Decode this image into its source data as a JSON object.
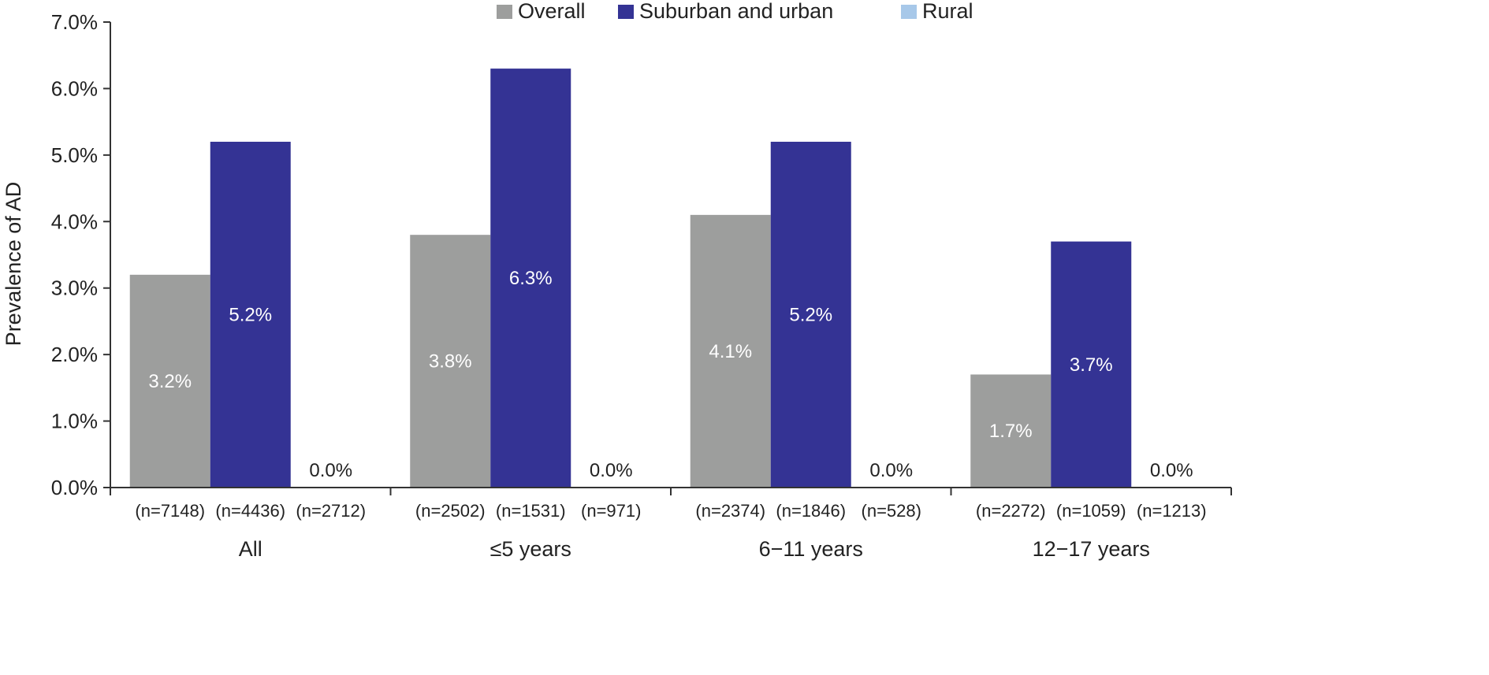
{
  "chart_data": {
    "type": "bar",
    "title": "",
    "ylabel": "Prevalence of AD",
    "ylim": [
      0,
      7
    ],
    "yticks": [
      "0.0%",
      "1.0%",
      "2.0%",
      "3.0%",
      "4.0%",
      "5.0%",
      "6.0%",
      "7.0%"
    ],
    "grid": false,
    "legend_position": "top-center",
    "categories": [
      "All",
      "≤5 years",
      "6−11 years",
      "12−17 years"
    ],
    "series": [
      {
        "name": "Overall",
        "color": "#9d9e9d",
        "label_color": "#ffffff",
        "values": [
          3.2,
          3.8,
          4.1,
          1.7
        ],
        "labels": [
          "3.2%",
          "3.8%",
          "4.1%",
          "1.7%"
        ],
        "n": [
          "(n=7148)",
          "(n=2502)",
          "(n=2374)",
          "(n=2272)"
        ]
      },
      {
        "name": "Suburban and urban",
        "color": "#343394",
        "label_color": "#ffffff",
        "values": [
          5.2,
          6.3,
          5.2,
          3.7
        ],
        "labels": [
          "5.2%",
          "6.3%",
          "5.2%",
          "3.7%"
        ],
        "n": [
          "(n=4436)",
          "(n=1531)",
          "(n=1846)",
          "(n=1059)"
        ]
      },
      {
        "name": "Rural",
        "color": "#a7c8e9",
        "label_color": "#222222",
        "values": [
          0.0,
          0.0,
          0.0,
          0.0
        ],
        "labels": [
          "0.0%",
          "0.0%",
          "0.0%",
          "0.0%"
        ],
        "n": [
          "(n=2712)",
          "(n=971)",
          "(n=528)",
          "(n=1213)"
        ]
      }
    ]
  }
}
